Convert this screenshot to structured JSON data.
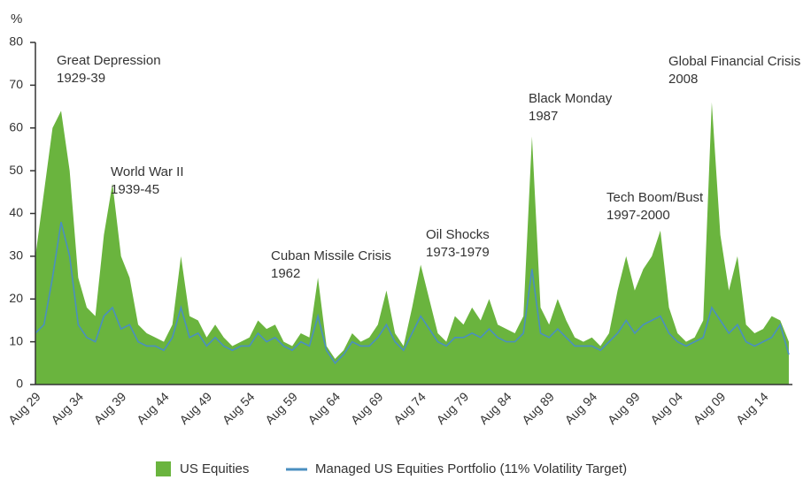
{
  "chart_data": {
    "type": "area-line",
    "y_label": "%",
    "categories": [
      "Aug 29",
      null,
      null,
      null,
      null,
      "Aug 34",
      null,
      null,
      null,
      null,
      "Aug 39",
      null,
      null,
      null,
      null,
      "Aug 44",
      null,
      null,
      null,
      null,
      "Aug 49",
      null,
      null,
      null,
      null,
      "Aug 54",
      null,
      null,
      null,
      null,
      "Aug 59",
      null,
      null,
      null,
      null,
      "Aug 64",
      null,
      null,
      null,
      null,
      "Aug 69",
      null,
      null,
      null,
      null,
      "Aug 74",
      null,
      null,
      null,
      null,
      "Aug 79",
      null,
      null,
      null,
      null,
      "Aug 84",
      null,
      null,
      null,
      null,
      "Aug 89",
      null,
      null,
      null,
      null,
      "Aug 94",
      null,
      null,
      null,
      null,
      "Aug 99",
      null,
      null,
      null,
      null,
      "Aug 04",
      null,
      null,
      null,
      null,
      "Aug 09",
      null,
      null,
      null,
      null,
      "Aug 14",
      null,
      null,
      null
    ],
    "series": [
      {
        "name": "US Equities",
        "color": "#6ab43e",
        "values": [
          30,
          45,
          60,
          64,
          50,
          25,
          18,
          16,
          35,
          47,
          30,
          25,
          14,
          12,
          11,
          10,
          14,
          30,
          16,
          15,
          11,
          14,
          11,
          9,
          10,
          11,
          15,
          13,
          14,
          10,
          9,
          12,
          11,
          25,
          9,
          6,
          8,
          12,
          10,
          11,
          14,
          22,
          12,
          9,
          18,
          28,
          20,
          12,
          10,
          16,
          14,
          18,
          15,
          20,
          14,
          13,
          12,
          16,
          58,
          18,
          14,
          20,
          15,
          11,
          10,
          11,
          9,
          12,
          22,
          30,
          22,
          27,
          30,
          36,
          18,
          12,
          10,
          11,
          15,
          66,
          35,
          22,
          30,
          14,
          12,
          13,
          16,
          15,
          10
        ]
      },
      {
        "name": "Managed US Equities Portfolio (11% Volatility Target)",
        "color": "#4a8fc0",
        "values": [
          12,
          14,
          25,
          38,
          30,
          14,
          11,
          10,
          16,
          18,
          13,
          14,
          10,
          9,
          9,
          8,
          11,
          18,
          11,
          12,
          9,
          11,
          9,
          8,
          9,
          9,
          12,
          10,
          11,
          9,
          8,
          10,
          9,
          16,
          8,
          5,
          7,
          10,
          9,
          9,
          11,
          14,
          10,
          8,
          12,
          16,
          13,
          10,
          9,
          11,
          11,
          12,
          11,
          13,
          11,
          10,
          10,
          12,
          27,
          12,
          11,
          13,
          11,
          9,
          9,
          9,
          8,
          10,
          12,
          15,
          12,
          14,
          15,
          16,
          12,
          10,
          9,
          10,
          11,
          18,
          15,
          12,
          14,
          10,
          9,
          10,
          11,
          14,
          7
        ]
      }
    ],
    "ylim": [
      0,
      80
    ],
    "yticks": [
      0,
      10,
      20,
      30,
      40,
      50,
      60,
      70,
      80
    ],
    "annotations": [
      {
        "title": "Great Depression",
        "period": "1929-39"
      },
      {
        "title": "World War II",
        "period": "1939-45"
      },
      {
        "title": "Cuban Missile Crisis",
        "period": "1962"
      },
      {
        "title": "Oil Shocks",
        "period": "1973-1979"
      },
      {
        "title": "Black Monday",
        "period": "1987"
      },
      {
        "title": "Tech Boom/Bust",
        "period": "1997-2000"
      },
      {
        "title": "Global Financial Crisis",
        "period": "2008"
      }
    ]
  }
}
